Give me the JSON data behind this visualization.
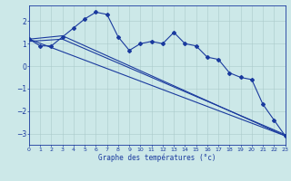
{
  "background_color": "#cce8e8",
  "line_color": "#1a3a9e",
  "grid_color": "#aacaca",
  "xlabel": "Graphe des températures (°c)",
  "xlim": [
    0,
    23
  ],
  "ylim": [
    -3.5,
    2.7
  ],
  "yticks": [
    -3,
    -2,
    -1,
    0,
    1,
    2
  ],
  "xticks": [
    0,
    1,
    2,
    3,
    4,
    5,
    6,
    7,
    8,
    9,
    10,
    11,
    12,
    13,
    14,
    15,
    16,
    17,
    18,
    19,
    20,
    21,
    22,
    23
  ],
  "series1_x": [
    0,
    1,
    2,
    3,
    4,
    5,
    6,
    7,
    8,
    9,
    10,
    11,
    12,
    13,
    14,
    15,
    16,
    17,
    18,
    19,
    20,
    21,
    22,
    23
  ],
  "series1_y": [
    1.2,
    0.9,
    0.9,
    1.3,
    1.7,
    2.1,
    2.4,
    2.3,
    1.3,
    0.7,
    1.0,
    1.1,
    1.0,
    1.5,
    1.0,
    0.9,
    0.4,
    0.3,
    -0.3,
    -0.5,
    -0.6,
    -1.7,
    -2.4,
    -3.1
  ],
  "series2_x": [
    0,
    23
  ],
  "series2_y": [
    1.2,
    -3.1
  ],
  "series3_x": [
    0,
    3,
    23
  ],
  "series3_y": [
    1.2,
    1.35,
    -3.1
  ],
  "series4_x": [
    0,
    3,
    23
  ],
  "series4_y": [
    1.1,
    1.2,
    -3.05
  ],
  "marker": "D",
  "markersize": 2.0,
  "linewidth": 0.8
}
